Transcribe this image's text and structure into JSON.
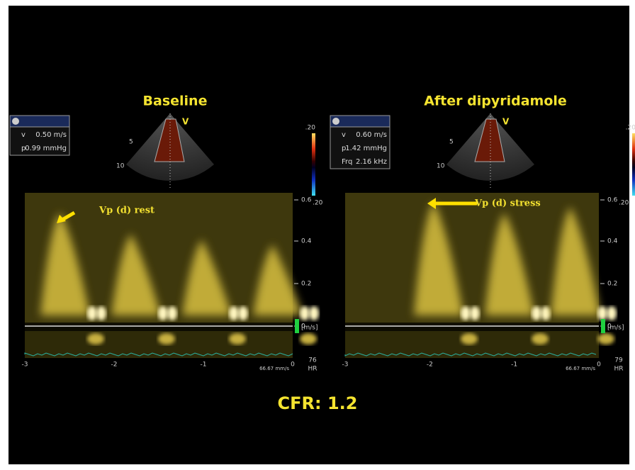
{
  "footer": "CFR: 1.2",
  "panels": [
    {
      "title": "Baseline",
      "info": [
        {
          "label": "v",
          "value": "0.50 m/s"
        },
        {
          "label": "p",
          "value": "0.99 mmHg"
        }
      ],
      "sector_labels": [
        "5",
        "10",
        "V"
      ],
      "colorbar_label": ".20",
      "annotation": "Vp (d) rest",
      "yticks": [
        "0.6",
        "0.4",
        "0.2",
        "0"
      ],
      "top_scale": ".20",
      "unit": "[m/s]",
      "xticks": [
        "-3",
        "-2",
        "-1",
        "0"
      ],
      "sweep": "66.67 mm/s",
      "hr_value": "76",
      "hr_label": "HR"
    },
    {
      "title": "After dipyridamole",
      "info": [
        {
          "label": "v",
          "value": "0.60 m/s"
        },
        {
          "label": "p",
          "value": "1.42 mmHg"
        },
        {
          "label": "Frq",
          "value": "2.16 kHz"
        }
      ],
      "sector_labels": [
        "5",
        "10",
        "V"
      ],
      "colorbar_label": ".20",
      "annotation": "Vp (d) stress",
      "yticks": [
        "0.6",
        "0.4",
        "0.2",
        "0"
      ],
      "top_scale": ".20",
      "unit": "[m/s]",
      "xticks": [
        "-3",
        "-2",
        "-1",
        "0"
      ],
      "sweep": "66.67 mm/s",
      "hr_value": "79",
      "hr_label": "HR"
    }
  ]
}
